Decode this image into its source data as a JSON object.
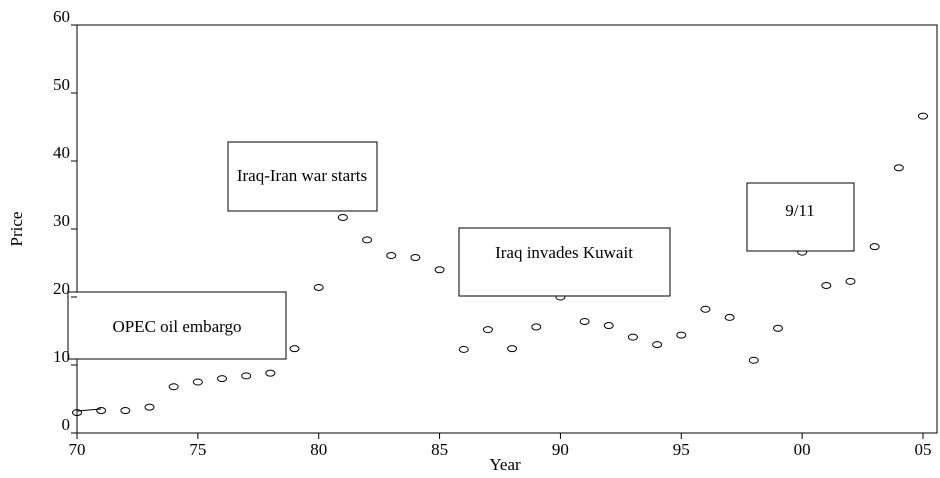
{
  "chart_data": {
    "type": "scatter",
    "x_label": "Year",
    "y_label": "Price",
    "x": [
      1970,
      1971,
      1972,
      1973,
      1974,
      1975,
      1976,
      1977,
      1978,
      1979,
      1980,
      1981,
      1982,
      1983,
      1984,
      1985,
      1986,
      1987,
      1988,
      1989,
      1990,
      1991,
      1992,
      1993,
      1994,
      1995,
      1996,
      1997,
      1998,
      1999,
      2000,
      2001,
      2002,
      2003,
      2004,
      2005
    ],
    "values": [
      3.0,
      3.3,
      3.3,
      3.8,
      6.8,
      7.5,
      8.0,
      8.4,
      8.8,
      12.4,
      21.4,
      31.7,
      28.4,
      26.1,
      25.8,
      24.0,
      12.3,
      15.2,
      12.4,
      15.6,
      20.0,
      16.4,
      15.8,
      14.1,
      13.0,
      14.4,
      18.2,
      17.0,
      10.7,
      15.4,
      26.6,
      21.7,
      22.3,
      27.4,
      39.0,
      46.6
    ],
    "color": "#000000",
    "xlim": [
      1970,
      2005
    ],
    "xticks": [
      {
        "value": 1970,
        "label": "70"
      },
      {
        "value": 1975,
        "label": "75"
      },
      {
        "value": 1980,
        "label": "80"
      },
      {
        "value": 1985,
        "label": "85"
      },
      {
        "value": 1990,
        "label": "90"
      },
      {
        "value": 1995,
        "label": "95"
      },
      {
        "value": 2000,
        "label": "00"
      },
      {
        "value": 2005,
        "label": "05"
      }
    ],
    "ylim": [
      0,
      60
    ],
    "yticks": [
      0,
      10,
      20,
      30,
      40,
      50,
      60
    ],
    "annotations": [
      "OPEC oil embargo",
      "Iraq-Iran war starts",
      "Iraq invades Kuwait",
      "9/11"
    ]
  }
}
